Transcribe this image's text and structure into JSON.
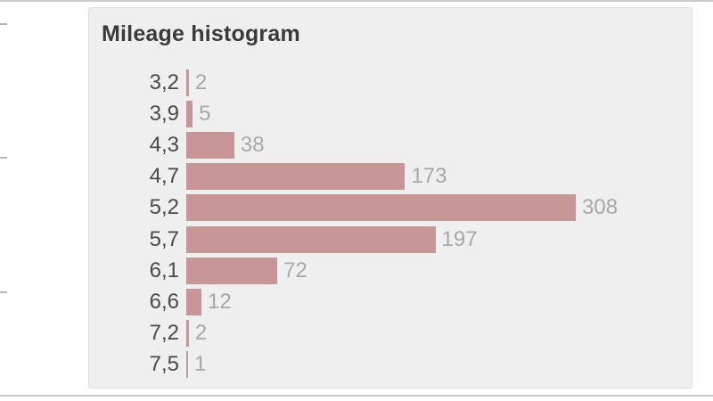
{
  "page": {
    "background": "#ffffff",
    "top_divider_color": "#c9c9c9",
    "bottom_divider_color": "#c9c9c9",
    "ruler_tick_color": "#b5b5b5"
  },
  "panel": {
    "background": "#efefef",
    "border_color": "#dedede"
  },
  "chart_data": {
    "type": "bar",
    "orientation": "horizontal",
    "title": "Mileage histogram",
    "categories": [
      "3,2",
      "3,9",
      "4,3",
      "4,7",
      "5,2",
      "5,7",
      "6,1",
      "6,6",
      "7,2",
      "7,5"
    ],
    "values": [
      2,
      5,
      38,
      173,
      308,
      197,
      72,
      12,
      2,
      1
    ],
    "value_labels": [
      "2",
      "5",
      "38",
      "173",
      "308",
      "197",
      "72",
      "12",
      "2",
      "1"
    ],
    "xlabel": "",
    "ylabel": "",
    "xlim": [
      0,
      320
    ],
    "grid": false,
    "legend": false,
    "bar_color": "#c99697",
    "category_label_color": "#4a4a4a",
    "value_label_color": "#a8a8a8",
    "title_color": "#3a3a3a"
  }
}
